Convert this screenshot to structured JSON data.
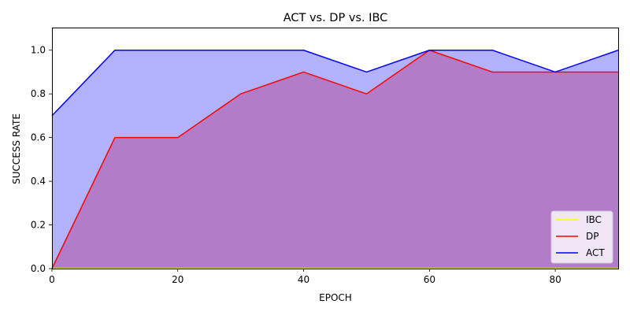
{
  "chart_data": {
    "type": "area",
    "title": "ACT vs. DP vs. IBC",
    "xlabel": "EPOCH",
    "ylabel": "SUCCESS RATE",
    "xlim": [
      0,
      90
    ],
    "ylim": [
      0,
      1.1
    ],
    "xticks": [
      0,
      20,
      40,
      60,
      80
    ],
    "yticks": [
      0.0,
      0.2,
      0.4,
      0.6,
      0.8,
      1.0
    ],
    "xtick_labels": [
      "0",
      "20",
      "40",
      "60",
      "80"
    ],
    "ytick_labels": [
      "0.0",
      "0.2",
      "0.4",
      "0.6",
      "0.8",
      "1.0"
    ],
    "grid": false,
    "legend_position": "lower-right",
    "x": [
      0,
      10,
      20,
      30,
      40,
      50,
      60,
      70,
      80,
      90
    ],
    "series": [
      {
        "name": "IBC",
        "color": "#ffff00",
        "fill": "#ffff00",
        "values": [
          0,
          0,
          0,
          0,
          0,
          0,
          0,
          0,
          0,
          0
        ]
      },
      {
        "name": "DP",
        "color": "#ff0000",
        "fill": "#ff0000",
        "values": [
          0.0,
          0.6,
          0.6,
          0.8,
          0.9,
          0.8,
          1.0,
          0.9,
          0.9,
          0.9
        ]
      },
      {
        "name": "ACT",
        "color": "#0000ff",
        "fill": "#0000ff",
        "values": [
          0.7,
          1.0,
          1.0,
          1.0,
          1.0,
          0.9,
          1.0,
          1.0,
          0.9,
          1.0
        ]
      }
    ]
  }
}
